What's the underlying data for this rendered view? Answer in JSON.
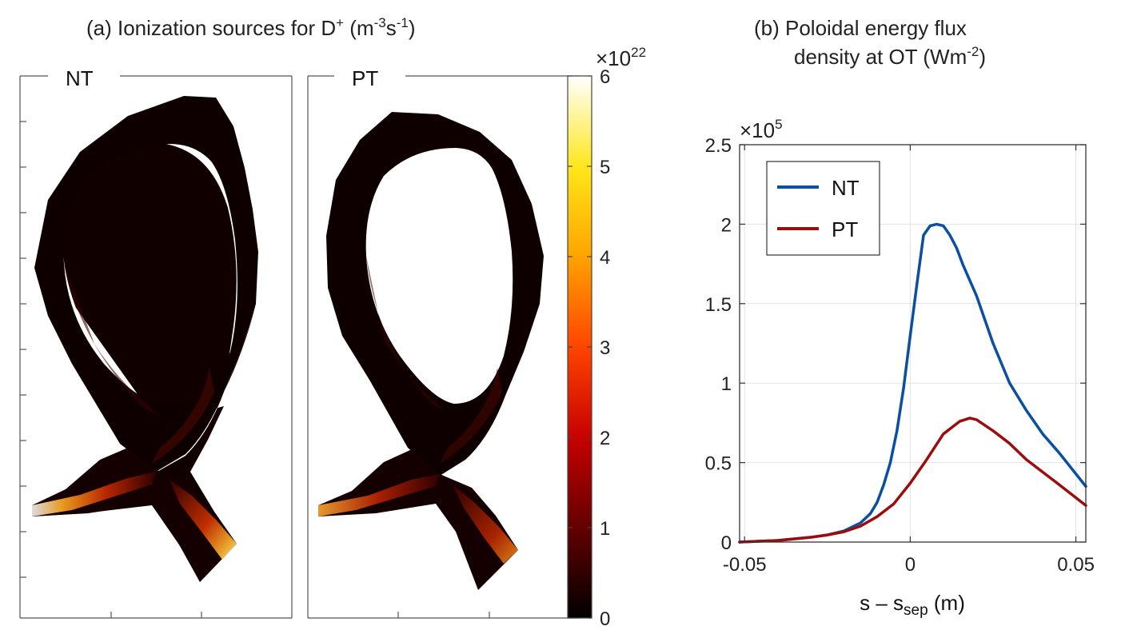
{
  "panel_a": {
    "title_main": "(a) Ionization sources for D",
    "title_sup": "+",
    "title_unit_open": " (m",
    "title_unit_sup1": "-3",
    "title_unit_mid": "s",
    "title_unit_sup2": "-1",
    "title_unit_close": ")",
    "left_label": "NT",
    "right_label": "PT",
    "colorbar": {
      "multiplier_base": "×10",
      "multiplier_exp": "22",
      "ticks": [
        "0",
        "1",
        "2",
        "3",
        "4",
        "5",
        "6"
      ],
      "range": [
        0,
        6
      ]
    }
  },
  "panel_b": {
    "title_line1": "(b) Poloidal energy flux",
    "title_line2_main": "density at OT (Wm",
    "title_line2_sup": "-2",
    "title_line2_close": ")"
  },
  "chart_data": {
    "type": "line",
    "title": "(b) Poloidal energy flux density at OT (Wm-2)",
    "xlabel_main": "s – s",
    "xlabel_sub": "sep",
    "xlabel_unit": " (m)",
    "y_multiplier_base": "×10",
    "y_multiplier_exp": "5",
    "xlim": [
      -0.0515,
      0.053
    ],
    "ylim": [
      0,
      2.5
    ],
    "x_ticks": [
      -0.05,
      0,
      0.05
    ],
    "x_tick_labels": [
      "-0.05",
      "0",
      "0.05"
    ],
    "y_ticks": [
      0,
      0.5,
      1,
      1.5,
      2,
      2.5
    ],
    "y_tick_labels": [
      "0",
      "0.5",
      "1",
      "1.5",
      "2",
      "2.5"
    ],
    "grid": true,
    "legend": "top-left",
    "series": [
      {
        "name": "NT",
        "color": "#0b4fa0",
        "x": [
          -0.0515,
          -0.04,
          -0.03,
          -0.025,
          -0.02,
          -0.015,
          -0.012,
          -0.01,
          -0.008,
          -0.006,
          -0.004,
          -0.002,
          0,
          0.002,
          0.004,
          0.006,
          0.008,
          0.01,
          0.012,
          0.014,
          0.016,
          0.02,
          0.025,
          0.03,
          0.035,
          0.04,
          0.045,
          0.053
        ],
        "y": [
          0,
          0.01,
          0.03,
          0.045,
          0.07,
          0.12,
          0.18,
          0.25,
          0.36,
          0.5,
          0.7,
          0.97,
          1.3,
          1.62,
          1.93,
          1.99,
          2.0,
          1.99,
          1.93,
          1.85,
          1.74,
          1.55,
          1.25,
          1.0,
          0.83,
          0.68,
          0.56,
          0.35
        ]
      },
      {
        "name": "PT",
        "color": "#9b0d0d",
        "x": [
          -0.0515,
          -0.04,
          -0.03,
          -0.025,
          -0.02,
          -0.015,
          -0.01,
          -0.005,
          0,
          0.005,
          0.01,
          0.015,
          0.018,
          0.02,
          0.025,
          0.03,
          0.035,
          0.04,
          0.045,
          0.053
        ],
        "y": [
          0,
          0.01,
          0.03,
          0.045,
          0.065,
          0.1,
          0.16,
          0.24,
          0.37,
          0.52,
          0.68,
          0.76,
          0.78,
          0.77,
          0.7,
          0.62,
          0.52,
          0.44,
          0.36,
          0.23
        ]
      }
    ]
  }
}
